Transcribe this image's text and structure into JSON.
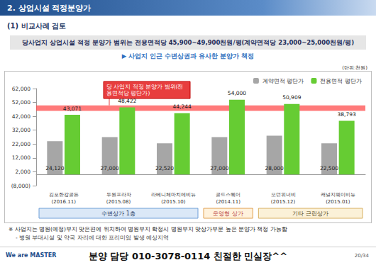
{
  "header": {
    "title": "2. 상업시설 적정분양가",
    "section": "(1) 비교사례 검토"
  },
  "banner": {
    "text": "당사업지 상업시설 적정 분양가 범위는 전용면적당 45,900~49,900천원/평(계약면적당 23,000~25,000천원/평)",
    "sub": "▶ 사업지 인근 수변상권과 유사한 분양가 책정"
  },
  "chart_data": {
    "type": "bar",
    "unit": "(단위:천원)",
    "categories": [
      "김포한강골든\n(2016.11)",
      "두원프라자\n(2015.08)",
      "라베니체마치에비뉴\n(2015.10)",
      "골드스퀘어\n(2014.11)",
      "모던위너비\n(2015.12)",
      "캐널지웨이비뉴\n(2015.01)"
    ],
    "series": [
      {
        "name": "계약면적 평단가",
        "color": "#a6a6a6",
        "values": [
          24120,
          27000,
          22520,
          27000,
          28000,
          22500
        ],
        "value_labels": [
          "24,120",
          "27,000",
          "22,520",
          "27,000",
          "28,000",
          "22,500"
        ]
      },
      {
        "name": "전용면적 평단가",
        "color": "#66cc33",
        "values": [
          43071,
          48422,
          44244,
          54000,
          50909,
          38793
        ],
        "value_labels": [
          "43,071",
          "48,422",
          "44,244",
          "54,000",
          "50,909",
          "38,793"
        ]
      }
    ],
    "ylim": [
      -8000,
      62000
    ],
    "yticks": [
      {
        "value": -8000,
        "label": "(8,000)"
      },
      {
        "value": 2000,
        "label": "2,000"
      },
      {
        "value": 12000,
        "label": "12,000"
      },
      {
        "value": 22000,
        "label": "22,000"
      },
      {
        "value": 32000,
        "label": "32,000"
      },
      {
        "value": 42000,
        "label": "42,000"
      },
      {
        "value": 52000,
        "label": "52,000"
      },
      {
        "value": 62000,
        "label": "62,000"
      }
    ],
    "grid": false,
    "legend": "upper right",
    "data_labels": true,
    "target_range": {
      "label": "당 사업지 적정 분양가 범위(전용면적당 평단가)",
      "values": [
        45900,
        49900
      ],
      "color": "#ff4d4d"
    },
    "groups": [
      {
        "label": "수변상가 1층",
        "members": [
          "김포한강골든\n(2016.11)",
          "두원프라자\n(2015.08)",
          "라베니체마치에비뉴\n(2015.10)"
        ]
      },
      {
        "label": "운영형 상가",
        "members": [
          "골드스퀘어\n(2014.11)"
        ]
      },
      {
        "label": "기타 근린상가",
        "members": [
          "모던위너비\n(2015.12)",
          "캐널지웨이비뉴\n(2015.01)"
        ]
      }
    ]
  },
  "footer": {
    "notes": [
      "※ 사업지는 병원(예정)부지 맞은편에 위치하여 병원부지 확정시 병원부지 맞상가부문 높은 분양가 책정 가능함",
      "- 병원 부대시설 및 약국 자리에 대한 프리미엄 발생 예상지역"
    ],
    "brand": "We are MASTER",
    "contact": "분양 담당 010-3078-0114 친절한 민실장^^",
    "page": "20/34"
  }
}
